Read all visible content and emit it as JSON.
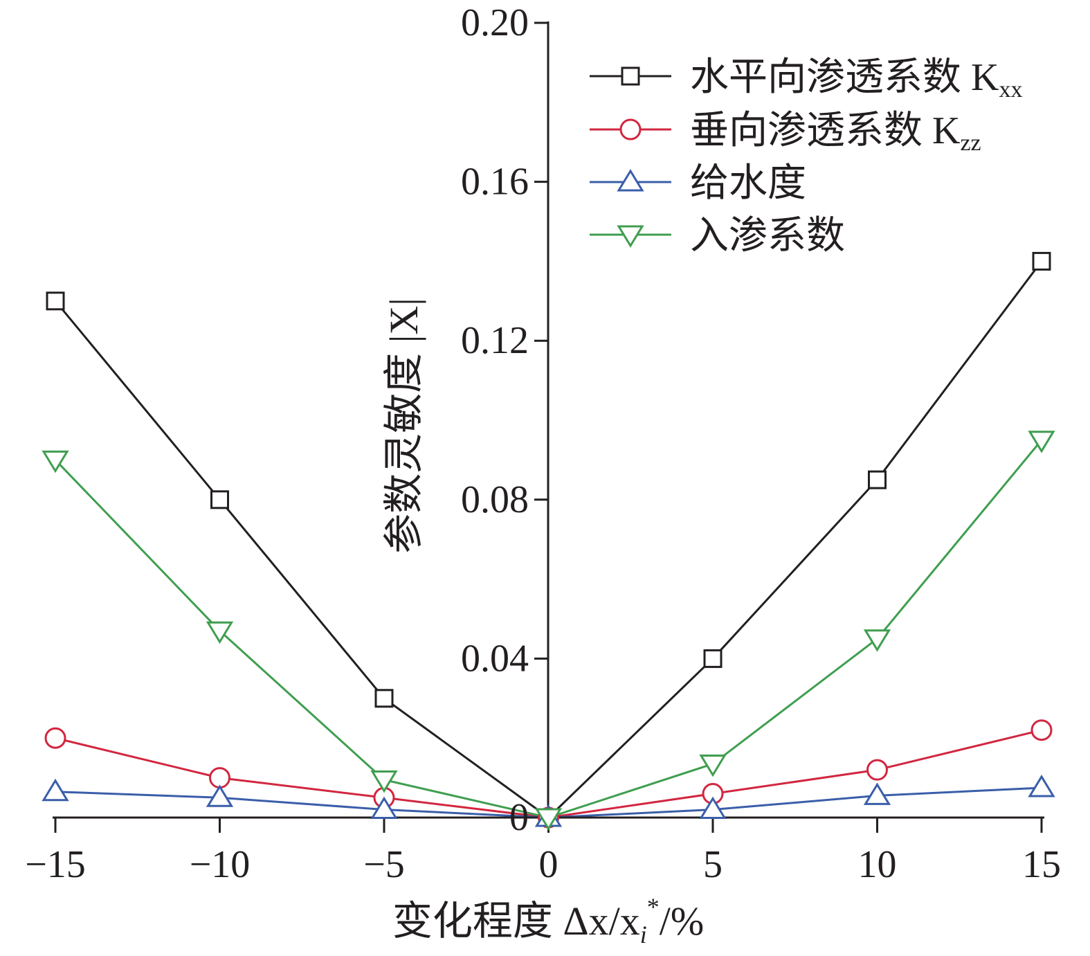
{
  "chart_data": {
    "type": "line",
    "x": [
      -15,
      -10,
      -5,
      0,
      5,
      10,
      15
    ],
    "xlim": [
      -15,
      15
    ],
    "ylim": [
      0,
      0.2
    ],
    "x_ticks": [
      -15,
      -10,
      -5,
      0,
      5,
      10,
      15
    ],
    "x_tick_labels": [
      "−15",
      "−10",
      "−5",
      "0",
      "5",
      "10",
      "15"
    ],
    "y_ticks": [
      0,
      0.04,
      0.08,
      0.12,
      0.16,
      0.2
    ],
    "y_tick_labels": [
      "0",
      "0.04",
      "0.08",
      "0.12",
      "0.16",
      "0.20"
    ],
    "xlabel": {
      "text": "变化程度 Δx/x",
      "sub": "i",
      "sup": "*",
      "tail": "/%"
    },
    "ylabel": "参数灵敏度 |X|",
    "grid": false,
    "legend_position": "top-right",
    "series": [
      {
        "name": "水平向渗透系数 K",
        "name_sub": "xx",
        "color": "#231f20",
        "marker": "square",
        "values": [
          0.13,
          0.08,
          0.03,
          0.0,
          0.04,
          0.085,
          0.14
        ]
      },
      {
        "name": "垂向渗透系数 K",
        "name_sub": "zz",
        "color": "#d2263f",
        "marker": "circle",
        "values": [
          0.02,
          0.01,
          0.005,
          0.0,
          0.006,
          0.012,
          0.022
        ]
      },
      {
        "name": "给水度",
        "color": "#3a5ea9",
        "marker": "triangle-up",
        "values": [
          0.0065,
          0.005,
          0.002,
          0.0,
          0.002,
          0.0055,
          0.0075
        ]
      },
      {
        "name": "入渗系数",
        "color": "#3f9e4f",
        "marker": "triangle-down",
        "values": [
          0.09,
          0.047,
          0.0095,
          0.0,
          0.0135,
          0.045,
          0.095
        ]
      }
    ]
  }
}
